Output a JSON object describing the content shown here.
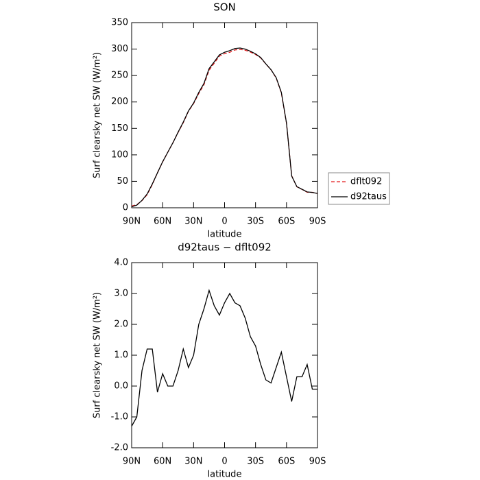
{
  "chart_data": [
    {
      "type": "line",
      "title": "SON",
      "x_label": "latitude",
      "y_label": "Surf clearsky net SW (W/m²)",
      "x": [
        90,
        85,
        80,
        75,
        70,
        65,
        60,
        55,
        50,
        45,
        40,
        35,
        30,
        25,
        20,
        15,
        10,
        5,
        0,
        -5,
        -10,
        -15,
        -20,
        -25,
        -30,
        -35,
        -40,
        -45,
        -50,
        -55,
        -60,
        -65,
        -70,
        -75,
        -80,
        -85,
        -90
      ],
      "series": [
        {
          "name": "dflt092",
          "color": "#e41a1c",
          "dashed": true,
          "values": [
            3.3,
            6,
            13.5,
            24.8,
            43.8,
            66.2,
            86.6,
            105,
            123,
            142.5,
            160.8,
            182.4,
            197,
            216,
            232.5,
            259.9,
            273.4,
            286.7,
            291.3,
            294,
            298.3,
            299.4,
            297.8,
            294.4,
            289.7,
            283.3,
            271.8,
            260.9,
            245.4,
            216.9,
            159.7,
            60.5,
            39.7,
            34.7,
            29.3,
            29.1,
            27.1
          ]
        },
        {
          "name": "d92taus",
          "color": "#000000",
          "dashed": false,
          "values": [
            2,
            5,
            14,
            26,
            45,
            66,
            87,
            105,
            123,
            143,
            162,
            183,
            198,
            218,
            235,
            263,
            276,
            289,
            294,
            297,
            301,
            302,
            300,
            296,
            291,
            284,
            272,
            261,
            246,
            218,
            160,
            60,
            40,
            35,
            30,
            29,
            27
          ]
        }
      ],
      "xlim": [
        90,
        -90
      ],
      "xticks": [
        {
          "value": 90,
          "label": "90N"
        },
        {
          "value": 60,
          "label": "60N"
        },
        {
          "value": 30,
          "label": "30N"
        },
        0,
        {
          "value": -30,
          "label": "30S"
        },
        {
          "value": -60,
          "label": "60S"
        },
        {
          "value": -90,
          "label": "90S"
        }
      ],
      "ylim": [
        0,
        350
      ],
      "yticks": [
        0,
        50,
        100,
        150,
        200,
        250,
        300,
        350
      ],
      "legend": "right"
    },
    {
      "type": "line",
      "title": "d92taus − dflt092",
      "x_label": "latitude",
      "y_label": "Surf clearsky net SW (W/m²)",
      "x": [
        90,
        85,
        80,
        75,
        70,
        65,
        60,
        55,
        50,
        45,
        40,
        35,
        30,
        25,
        20,
        15,
        10,
        5,
        0,
        -5,
        -10,
        -15,
        -20,
        -25,
        -30,
        -35,
        -40,
        -45,
        -50,
        -55,
        -60,
        -65,
        -70,
        -75,
        -80,
        -85,
        -90
      ],
      "series": [
        {
          "color": "#000000",
          "dashed": false,
          "values": [
            -1.3,
            -1.0,
            0.5,
            1.2,
            1.2,
            -0.2,
            0.4,
            0.0,
            0.0,
            0.5,
            1.2,
            0.6,
            1.0,
            2.0,
            2.5,
            3.1,
            2.6,
            2.3,
            2.7,
            3.0,
            2.7,
            2.6,
            2.2,
            1.6,
            1.3,
            0.7,
            0.2,
            0.1,
            0.6,
            1.1,
            0.3,
            -0.5,
            0.3,
            0.3,
            0.7,
            -0.1,
            -0.1
          ]
        }
      ],
      "xlim": [
        90,
        -90
      ],
      "xticks": [
        {
          "value": 90,
          "label": "90N"
        },
        {
          "value": 60,
          "label": "60N"
        },
        {
          "value": 30,
          "label": "30N"
        },
        0,
        {
          "value": -30,
          "label": "30S"
        },
        {
          "value": -60,
          "label": "60S"
        },
        {
          "value": -90,
          "label": "90S"
        }
      ],
      "ylim": [
        -2,
        4
      ],
      "yticks": [
        {
          "value": -2,
          "label": "-2.0"
        },
        {
          "value": -1,
          "label": "-1.0"
        },
        {
          "value": 0,
          "label": "0.0"
        },
        {
          "value": 1,
          "label": "1.0"
        },
        {
          "value": 2,
          "label": "2.0"
        },
        {
          "value": 3,
          "label": "3.0"
        },
        {
          "value": 4,
          "label": "4.0"
        }
      ]
    }
  ]
}
